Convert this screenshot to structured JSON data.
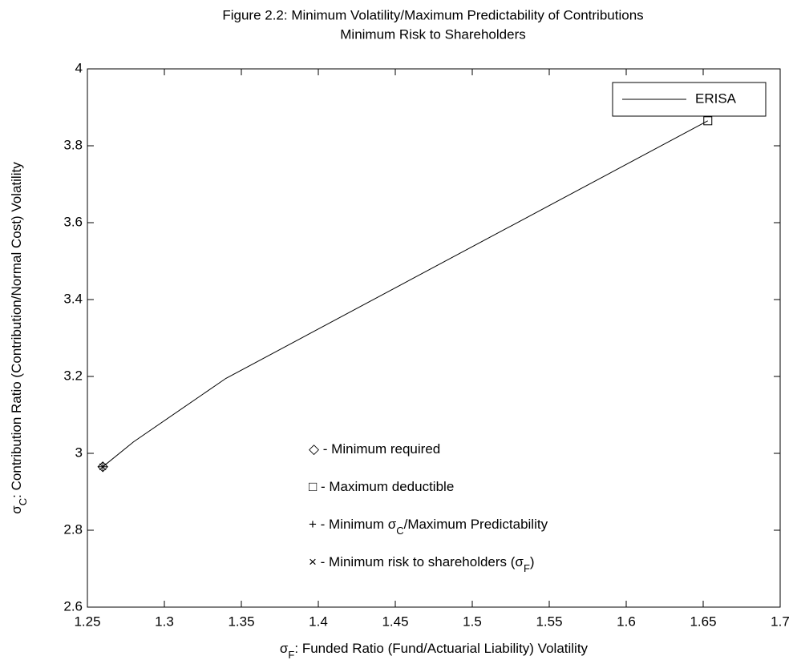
{
  "chart_data": {
    "type": "line",
    "title": [
      "Figure 2.2:  Minimum Volatility/Maximum Predictability of Contributions",
      "Minimum Risk to Shareholders"
    ],
    "x_label": {
      "symbol": "σ",
      "sub": "F",
      "text": ": Funded Ratio (Fund/Actuarial Liability) Volatility"
    },
    "y_label": {
      "symbol": "σ",
      "sub": "C",
      "text": ": Contribution Ratio (Contribution/Normal Cost) Volatility"
    },
    "series": [
      {
        "name": "ERISA",
        "color": "#000000",
        "x": [
          1.26,
          1.28,
          1.34,
          1.653
        ],
        "values": [
          2.965,
          3.03,
          3.195,
          3.865
        ]
      }
    ],
    "points": [
      {
        "x": 1.26,
        "y": 2.965,
        "marker": "diamond"
      },
      {
        "x": 1.26,
        "y": 2.965,
        "marker": "plus"
      },
      {
        "x": 1.26,
        "y": 2.965,
        "marker": "cross"
      },
      {
        "x": 1.653,
        "y": 3.865,
        "marker": "square"
      }
    ],
    "annotations": [
      {
        "text": "◇ - Minimum required"
      },
      {
        "text": "□ - Maximum deductible"
      },
      {
        "text": "+ - Minimum σ",
        "sub": "C",
        "rest": "/Maximum Predictability"
      },
      {
        "text": "× - Minimum risk to shareholders (σ",
        "sub": "F",
        "rest": ")"
      }
    ],
    "xlim": [
      1.25,
      1.7
    ],
    "xticks": [
      1.25,
      1.3,
      1.35,
      1.4,
      1.45,
      1.5,
      1.55,
      1.6,
      1.65,
      1.7
    ],
    "ylim": [
      2.6,
      4
    ],
    "yticks": [
      2.6,
      2.8,
      3,
      3.2,
      3.4,
      3.6,
      3.8,
      4
    ],
    "grid": false,
    "legend": "upper right"
  }
}
